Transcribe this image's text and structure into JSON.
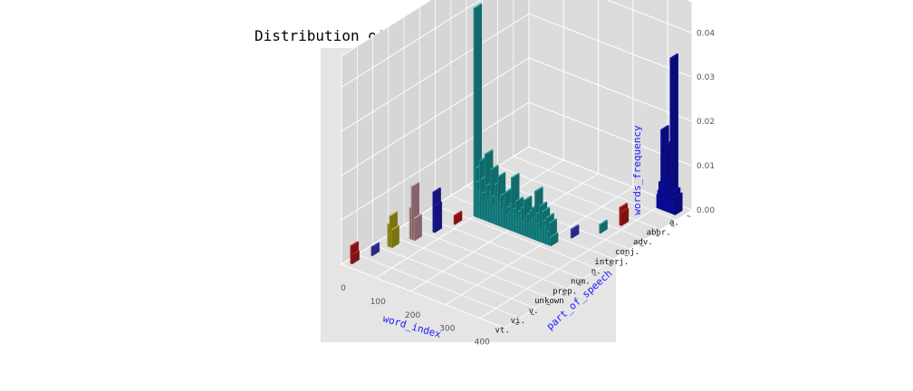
{
  "chart_data": {
    "type": "bar3d",
    "title": "Distribution of part of speech and word frequency",
    "xlabel": "word_index",
    "ylabel": "part_of_speech",
    "zlabel": "words_frequency",
    "x_ticks": [
      "0",
      "100",
      "200",
      "300",
      "400"
    ],
    "z_ticks": [
      "0.00",
      "0.01",
      "0.02",
      "0.03",
      "0.04"
    ],
    "xlim": [
      0,
      470
    ],
    "zlim": [
      0,
      0.047
    ],
    "categories": [
      "a.",
      "abbr.",
      "adv.",
      "conj.",
      "interj.",
      "n.",
      "num.",
      "prep.",
      "unkown",
      "v.",
      "vi.",
      "vt."
    ],
    "series": [
      {
        "category": "vt.",
        "color": "#d42020",
        "bars": [
          [
            15,
            0.004
          ],
          [
            17,
            0.002
          ]
        ]
      },
      {
        "category": "vi.",
        "color": "#4444dd",
        "bars": [
          [
            30,
            0.002
          ]
        ]
      },
      {
        "category": "v.",
        "color": "#c8c020",
        "bars": [
          [
            32,
            0.005
          ],
          [
            37,
            0.007
          ],
          [
            42,
            0.004
          ]
        ]
      },
      {
        "category": "unkown",
        "color": "#e0a8b0",
        "bars": [
          [
            50,
            0.007
          ],
          [
            55,
            0.012
          ],
          [
            62,
            0.005
          ]
        ]
      },
      {
        "category": "prep.",
        "color": "#2222cc",
        "bars": [
          [
            72,
            0.009
          ],
          [
            75,
            0.006
          ]
        ]
      },
      {
        "category": "num.",
        "color": "#d42020",
        "bars": [
          [
            88,
            0.002
          ]
        ]
      },
      {
        "category": "n.",
        "color": "#1fb0b0",
        "bars": [
          [
            100,
            0.047
          ],
          [
            104,
            0.011
          ],
          [
            108,
            0.008
          ],
          [
            112,
            0.006
          ],
          [
            116,
            0.013
          ],
          [
            120,
            0.009
          ],
          [
            124,
            0.006
          ],
          [
            128,
            0.004
          ],
          [
            132,
            0.015
          ],
          [
            136,
            0.008
          ],
          [
            140,
            0.005
          ],
          [
            144,
            0.007
          ],
          [
            148,
            0.012
          ],
          [
            152,
            0.006
          ],
          [
            156,
            0.004
          ],
          [
            160,
            0.009
          ],
          [
            164,
            0.006
          ],
          [
            168,
            0.011
          ],
          [
            172,
            0.005
          ],
          [
            176,
            0.007
          ],
          [
            180,
            0.004
          ],
          [
            184,
            0.006
          ],
          [
            188,
            0.008
          ],
          [
            192,
            0.003
          ],
          [
            196,
            0.005
          ],
          [
            200,
            0.004
          ],
          [
            204,
            0.006
          ],
          [
            208,
            0.012
          ],
          [
            212,
            0.005
          ],
          [
            216,
            0.004
          ],
          [
            220,
            0.007
          ],
          [
            224,
            0.003
          ],
          [
            228,
            0.005
          ],
          [
            232,
            0.004
          ],
          [
            236,
            0.006
          ],
          [
            240,
            0.003
          ],
          [
            244,
            0.008
          ],
          [
            248,
            0.004
          ],
          [
            252,
            0.005
          ],
          [
            256,
            0.003
          ],
          [
            260,
            0.006
          ],
          [
            264,
            0.004
          ],
          [
            268,
            0.007
          ],
          [
            272,
            0.005
          ],
          [
            276,
            0.011
          ],
          [
            280,
            0.006
          ],
          [
            284,
            0.004
          ],
          [
            288,
            0.008
          ],
          [
            292,
            0.003
          ],
          [
            296,
            0.007
          ],
          [
            300,
            0.005
          ],
          [
            304,
            0.004
          ],
          [
            308,
            0.006
          ],
          [
            312,
            0.003
          ],
          [
            316,
            0.005
          ],
          [
            320,
            0.002
          ]
        ]
      },
      {
        "category": "interj.",
        "color": "#4444dd",
        "bars": [
          [
            335,
            0.002
          ]
        ]
      },
      {
        "category": "conj.",
        "color": "#1fb0b0",
        "bars": [
          [
            372,
            0.002
          ]
        ]
      },
      {
        "category": "adv.",
        "color": "#d42020",
        "bars": [
          [
            385,
            0.004
          ],
          [
            388,
            0.003
          ]
        ]
      },
      {
        "category": "abbr.",
        "color": "#9090ff",
        "bars": []
      },
      {
        "category": "a.",
        "color": "#1010cc",
        "bars": [
          [
            402,
            0.003
          ],
          [
            405,
            0.004
          ],
          [
            408,
            0.006
          ],
          [
            411,
            0.005
          ],
          [
            414,
            0.018
          ],
          [
            417,
            0.006
          ],
          [
            420,
            0.012
          ],
          [
            423,
            0.004
          ],
          [
            426,
            0.015
          ],
          [
            429,
            0.003
          ],
          [
            432,
            0.007
          ],
          [
            435,
            0.005
          ],
          [
            438,
            0.004
          ],
          [
            441,
            0.035
          ],
          [
            444,
            0.003
          ],
          [
            447,
            0.005
          ],
          [
            450,
            0.002
          ],
          [
            453,
            0.004
          ]
        ]
      }
    ]
  }
}
